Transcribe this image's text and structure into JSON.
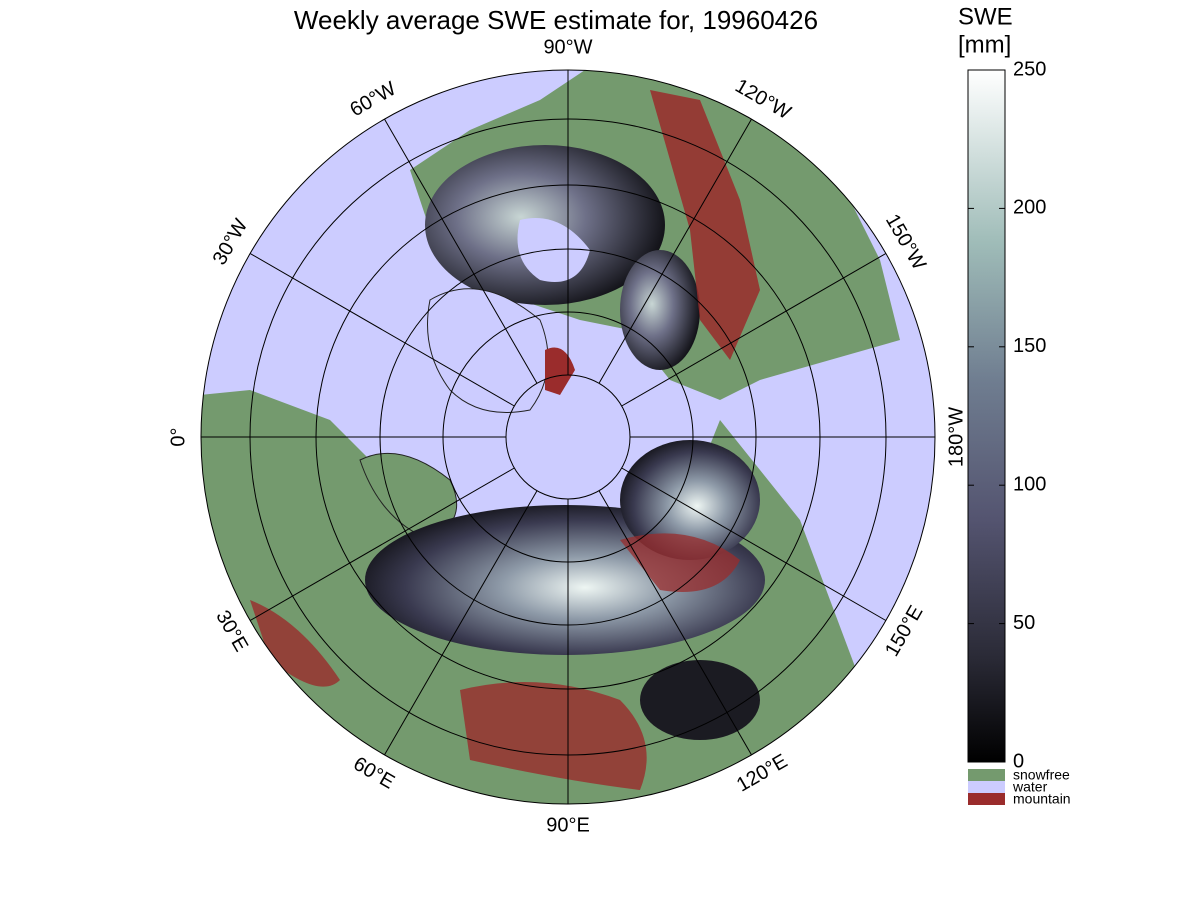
{
  "title": "Weekly average SWE estimate for, 19960426",
  "meridians": [
    {
      "value": -90,
      "label": "90°W"
    },
    {
      "value": -60,
      "label": "60°W"
    },
    {
      "value": -30,
      "label": "30°W"
    },
    {
      "value": 0,
      "label": "0°"
    },
    {
      "value": 30,
      "label": "30°E"
    },
    {
      "value": 60,
      "label": "60°E"
    },
    {
      "value": 90,
      "label": "90°E"
    },
    {
      "value": 120,
      "label": "120°E"
    },
    {
      "value": 150,
      "label": "150°E"
    },
    {
      "value": 180,
      "label": "180°W"
    },
    {
      "value": -150,
      "label": "150°W"
    },
    {
      "value": -120,
      "label": "120°W"
    }
  ],
  "colorbar": {
    "title": [
      "SWE",
      "[mm]"
    ],
    "lim": [
      0,
      250
    ],
    "ticks": [
      0,
      50,
      100,
      150,
      200,
      250
    ]
  },
  "legend": [
    {
      "label": "snowfree",
      "color": "#749a6e"
    },
    {
      "label": "water",
      "color": "#ccccff"
    },
    {
      "label": "mountain",
      "color": "#9a2c2c"
    }
  ]
}
